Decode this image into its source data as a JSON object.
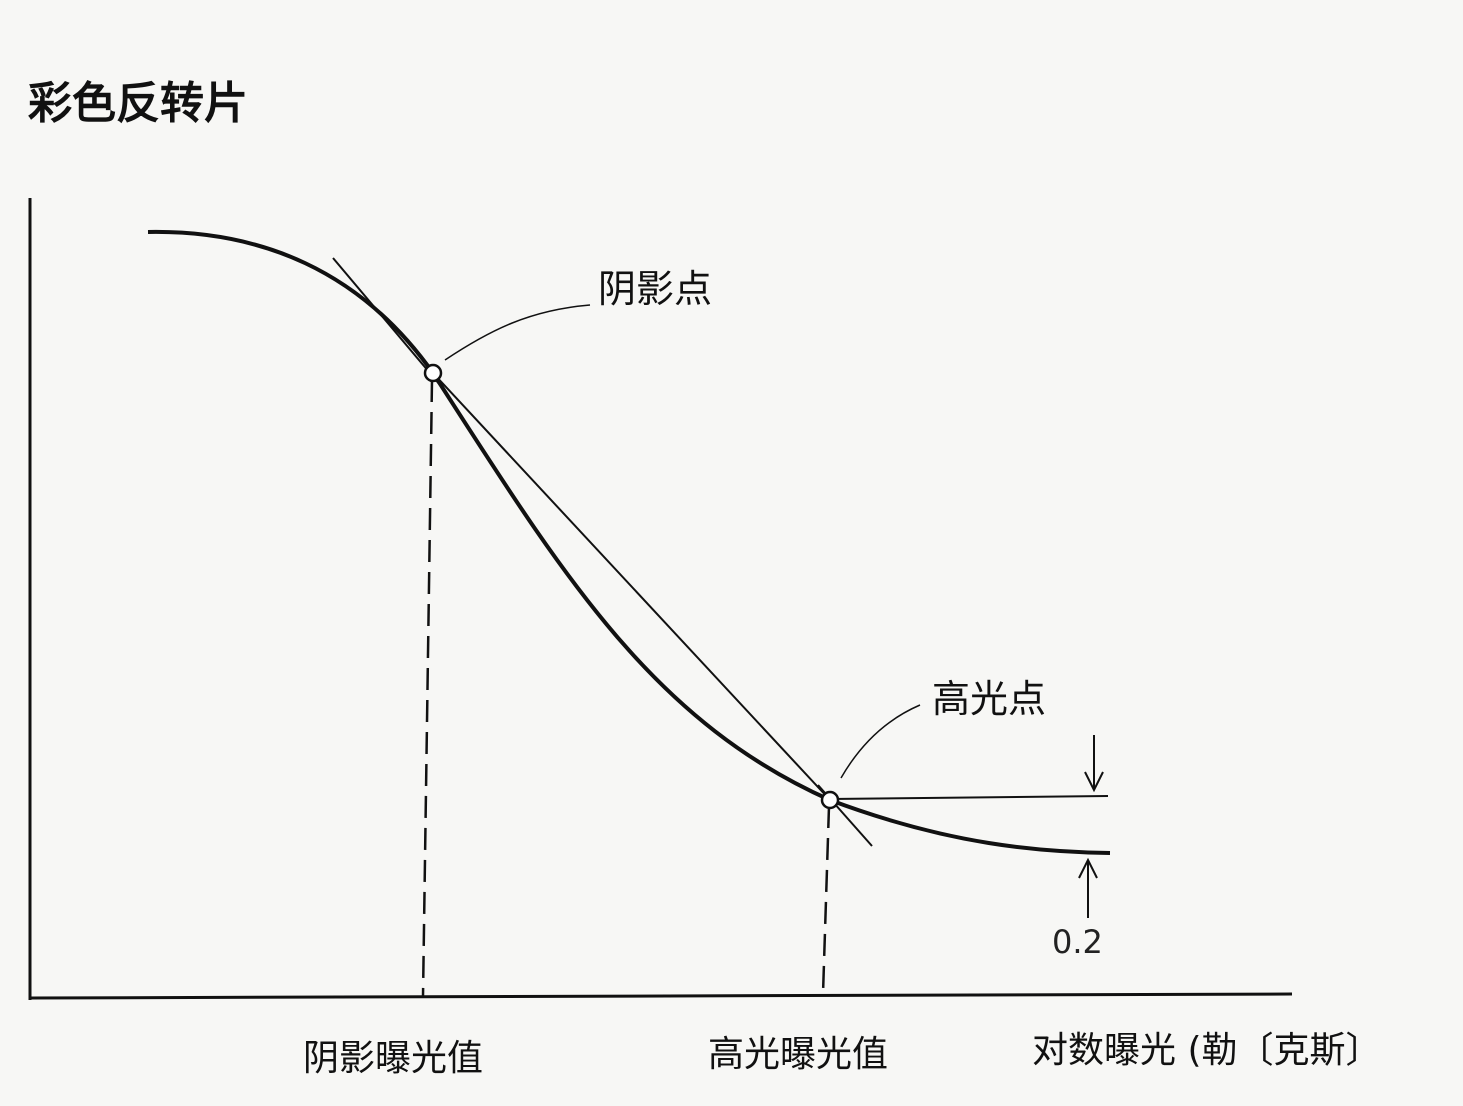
{
  "title": "彩色反转片",
  "labels": {
    "shadow_point": "阴影点",
    "highlight_point": "高光点",
    "shadow_exposure": "阴影曝光值",
    "highlight_exposure": "高光曝光值",
    "x_axis": "对数曝光 (勒〔克斯〕",
    "density_offset": "0.2"
  },
  "colors": {
    "ink": "#111111",
    "paper": "#f7f7f5"
  }
}
